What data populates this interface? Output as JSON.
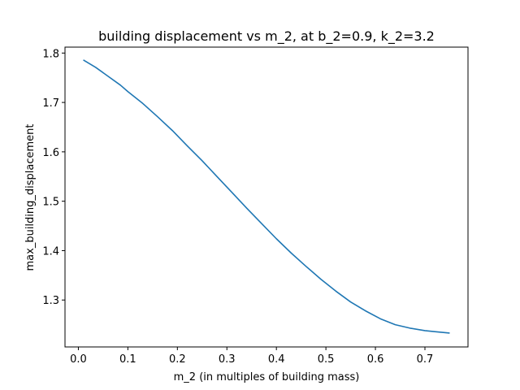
{
  "chart_data": {
    "type": "line",
    "title": "building displacement vs m_2, at b_2=0.9, k_2=3.2",
    "xlabel": "m_2 (in multiples of building mass)",
    "ylabel": "max_building_displacement",
    "xlim": [
      -0.027,
      0.787
    ],
    "ylim": [
      1.205,
      1.812
    ],
    "xticks": [
      0.0,
      0.1,
      0.2,
      0.3,
      0.4,
      0.5,
      0.6,
      0.7
    ],
    "xtick_labels": [
      "0.0",
      "0.1",
      "0.2",
      "0.3",
      "0.4",
      "0.5",
      "0.6",
      "0.7"
    ],
    "yticks": [
      1.3,
      1.4,
      1.5,
      1.6,
      1.7,
      1.8
    ],
    "ytick_labels": [
      "1.3",
      "1.4",
      "1.5",
      "1.6",
      "1.7",
      "1.8"
    ],
    "grid": false,
    "legend": "none",
    "series": [
      {
        "color": "#1f77b4",
        "x": [
          0.01,
          0.035,
          0.06,
          0.085,
          0.1,
          0.13,
          0.16,
          0.19,
          0.22,
          0.25,
          0.28,
          0.31,
          0.34,
          0.37,
          0.4,
          0.43,
          0.46,
          0.49,
          0.52,
          0.55,
          0.58,
          0.61,
          0.64,
          0.67,
          0.7,
          0.72,
          0.75
        ],
        "y": [
          1.786,
          1.771,
          1.753,
          1.735,
          1.722,
          1.698,
          1.671,
          1.643,
          1.612,
          1.582,
          1.55,
          1.518,
          1.486,
          1.455,
          1.424,
          1.395,
          1.368,
          1.342,
          1.318,
          1.296,
          1.278,
          1.262,
          1.25,
          1.243,
          1.238,
          1.236,
          1.233
        ]
      }
    ]
  }
}
